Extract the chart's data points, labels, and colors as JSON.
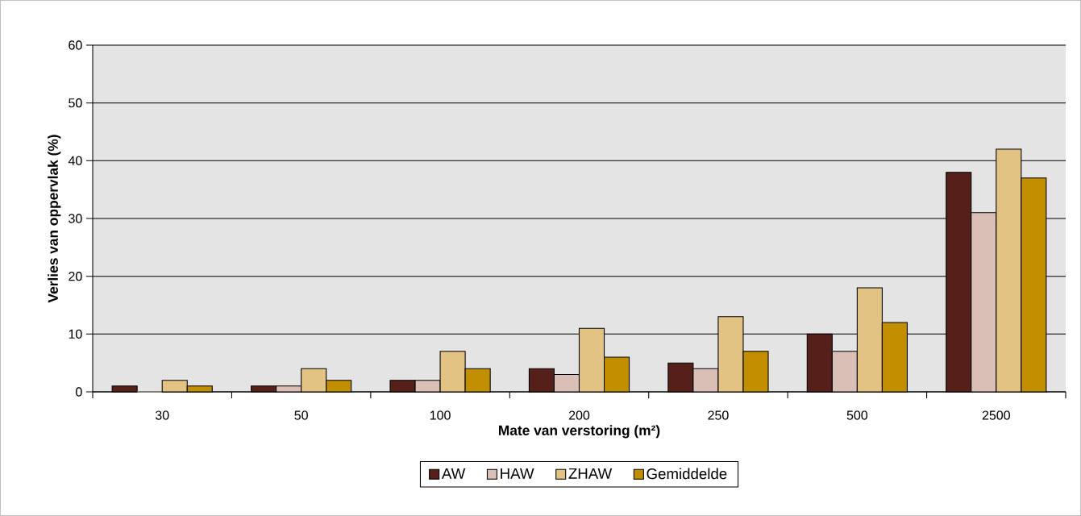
{
  "chart_data": {
    "type": "bar",
    "xlabel": "Mate van verstoring (m²)",
    "ylabel": "Verlies van oppervlak (%)",
    "categories": [
      "30",
      "50",
      "100",
      "200",
      "250",
      "500",
      "2500"
    ],
    "series": [
      {
        "name": "AW",
        "color": "#56201a",
        "values": [
          1,
          1,
          2,
          4,
          5,
          10,
          38
        ]
      },
      {
        "name": "HAW",
        "color": "#d9bfb5",
        "values": [
          0,
          1,
          2,
          3,
          4,
          7,
          31
        ]
      },
      {
        "name": "ZHAW",
        "color": "#e2c384",
        "values": [
          2,
          4,
          7,
          11,
          13,
          18,
          42
        ]
      },
      {
        "name": "Gemiddelde",
        "color": "#c18e00",
        "values": [
          1,
          2,
          4,
          6,
          7,
          12,
          37
        ]
      }
    ],
    "ylim": [
      0,
      60
    ],
    "yticks": [
      0,
      10,
      20,
      30,
      40,
      50,
      60
    ],
    "grid": "y",
    "legend": "bottom"
  }
}
